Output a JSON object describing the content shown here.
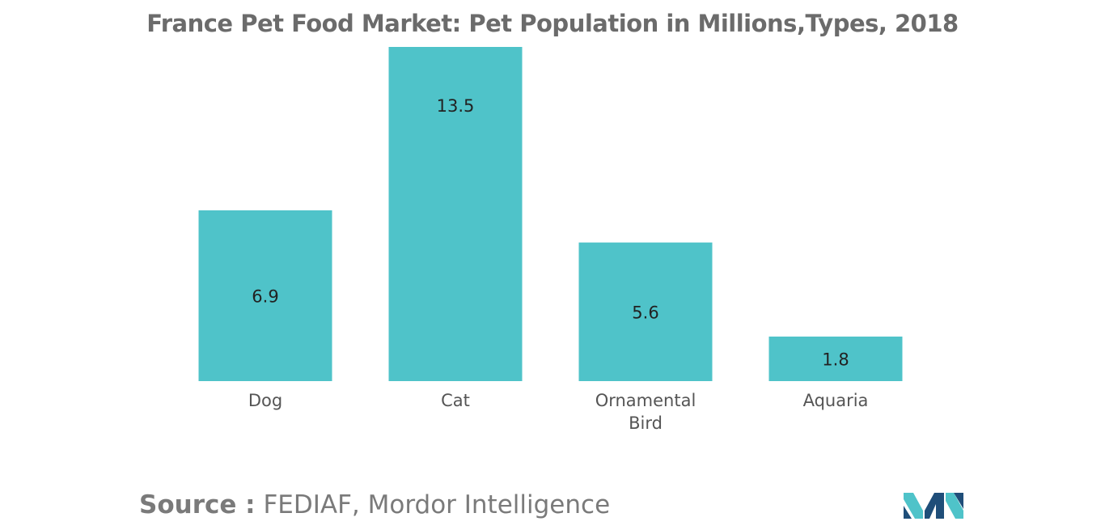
{
  "chart_data": {
    "type": "bar",
    "title": "France Pet Food Market: Pet Population in Millions,Types, 2018",
    "categories": [
      [
        "Dog"
      ],
      [
        "Cat"
      ],
      [
        "Ornamental",
        "Bird"
      ],
      [
        "Aquaria"
      ]
    ],
    "values": [
      6.9,
      13.5,
      5.6,
      1.8
    ],
    "data_labels": [
      "6.9",
      "13.5",
      "5.6",
      "1.8"
    ],
    "xlabel": "",
    "ylabel": "",
    "ylim": [
      0,
      13.5
    ],
    "grid": false,
    "legend": "none",
    "bar_color": "#4fc3c9"
  },
  "source": {
    "label": "Source :",
    "text": "FEDIAF, Mordor Intelligence"
  },
  "logo": {
    "icon": "mordor-intelligence-logo-icon",
    "colors": [
      "#1f4e79",
      "#4fc3c9"
    ]
  }
}
